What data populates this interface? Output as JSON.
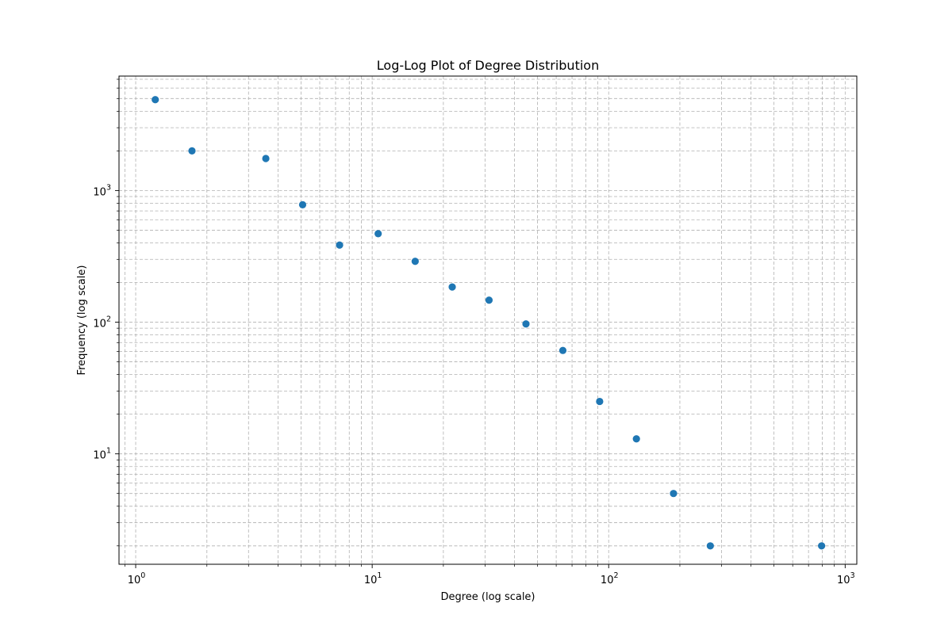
{
  "chart_data": {
    "type": "scatter",
    "title": "Log-Log Plot of Degree Distribution",
    "xlabel": "Degree (log scale)",
    "ylabel": "Frequency (log scale)",
    "xscale": "log",
    "yscale": "log",
    "xlim": [
      0.85,
      1120
    ],
    "ylim": [
      1.45,
      7400
    ],
    "grid": "both major and minor, dashed",
    "marker_color": "#1f77b4",
    "x_ticks": [
      {
        "base": "10",
        "exp": "0",
        "value": 1
      },
      {
        "base": "10",
        "exp": "1",
        "value": 10
      },
      {
        "base": "10",
        "exp": "2",
        "value": 100
      },
      {
        "base": "10",
        "exp": "3",
        "value": 1000
      }
    ],
    "y_ticks": [
      {
        "base": "10",
        "exp": "1",
        "value": 10
      },
      {
        "base": "10",
        "exp": "2",
        "value": 100
      },
      {
        "base": "10",
        "exp": "3",
        "value": 1000
      }
    ],
    "points": [
      {
        "x": 1.21,
        "y": 4900
      },
      {
        "x": 1.73,
        "y": 2000
      },
      {
        "x": 3.55,
        "y": 1750
      },
      {
        "x": 5.08,
        "y": 780
      },
      {
        "x": 7.28,
        "y": 385
      },
      {
        "x": 10.6,
        "y": 470
      },
      {
        "x": 15.2,
        "y": 290
      },
      {
        "x": 21.8,
        "y": 185
      },
      {
        "x": 31.2,
        "y": 147
      },
      {
        "x": 44.7,
        "y": 97
      },
      {
        "x": 64.0,
        "y": 61
      },
      {
        "x": 91.6,
        "y": 25
      },
      {
        "x": 131,
        "y": 13
      },
      {
        "x": 188,
        "y": 5
      },
      {
        "x": 269,
        "y": 2
      },
      {
        "x": 795,
        "y": 2
      }
    ]
  }
}
